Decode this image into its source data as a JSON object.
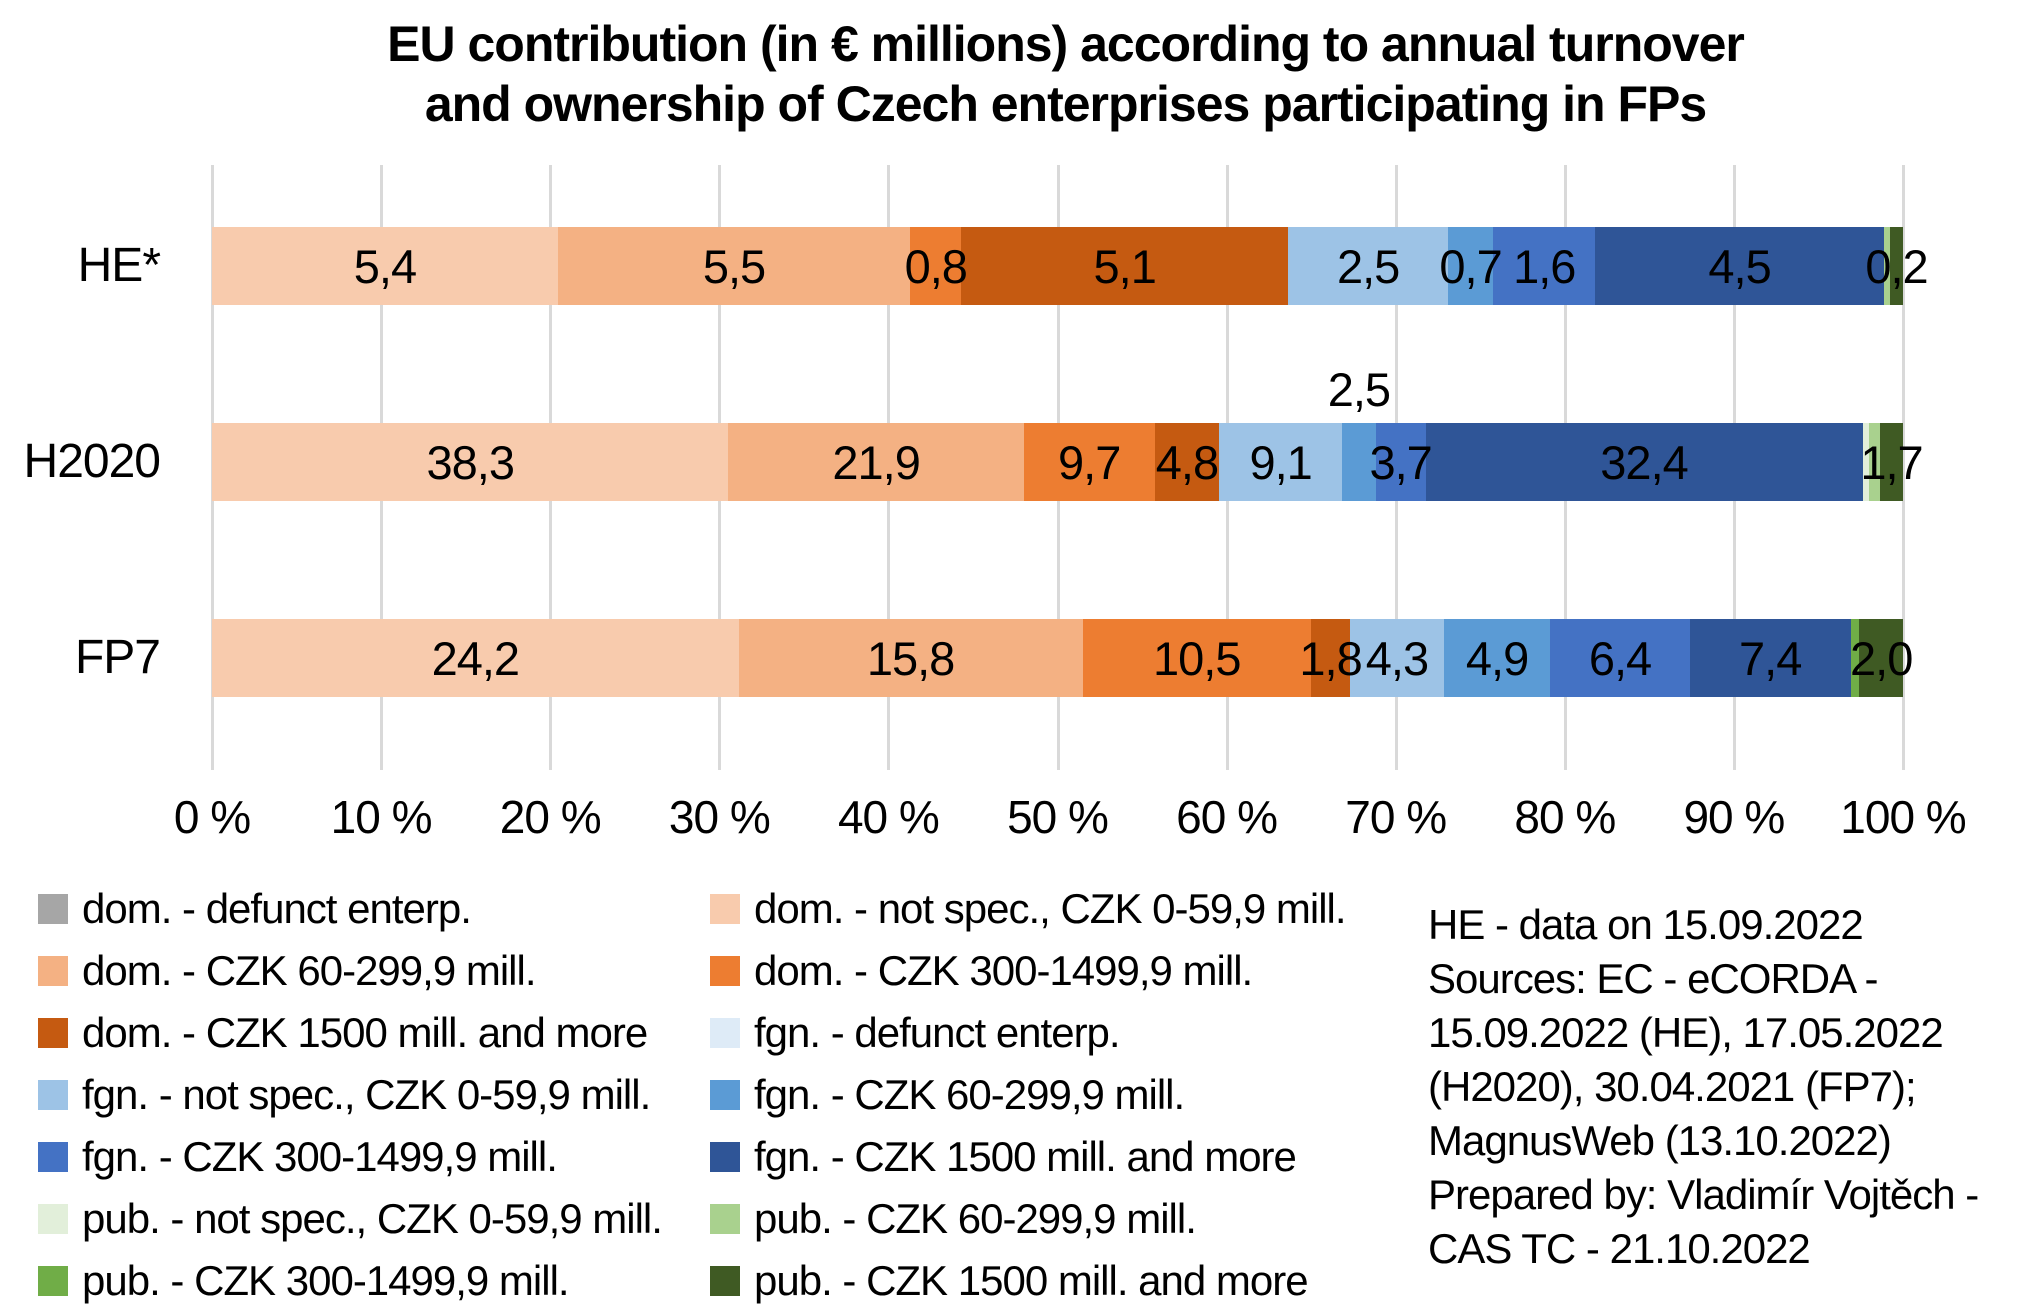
{
  "title": {
    "text": "EU contribution (in € millions) according to annual turnover\nand ownership of Czech enterprises participating in FPs"
  },
  "notes": {
    "text": "HE - data on 15.09.2022\nSources: EC - eCORDA -\n15.09.2022 (HE), 17.05.2022\n(H2020), 30.04.2021 (FP7);\nMagnusWeb (13.10.2022)\nPrepared by: Vladimír Vojtěch -\nCAS TC - 21.10.2022"
  },
  "colors": {
    "background": "#FFFFFF",
    "gridline": "#D9D9D9",
    "text": "#000000"
  },
  "chart_data": {
    "type": "bar",
    "stacked": true,
    "orientation": "horizontal",
    "value_unit": "€ millions",
    "title": "EU contribution (in € millions) according to annual turnover and ownership of Czech enterprises participating in FPs",
    "categories": [
      "HE*",
      "H2020",
      "FP7"
    ],
    "axis": {
      "min": 0,
      "max": 100,
      "tick_labels": [
        "0 %",
        "10 %",
        "20 %",
        "30 %",
        "40 %",
        "50 %",
        "60 %",
        "70 %",
        "80 %",
        "90 %",
        "100 %"
      ],
      "grid": true
    },
    "series": [
      {
        "name": "dom. - defunct enterp.",
        "color": "#A6A6A6",
        "values": [
          0,
          0,
          0
        ],
        "labels": [
          "",
          "",
          ""
        ]
      },
      {
        "name": "dom. - not spec., CZK 0-59,9 mill.",
        "color": "#F8CBAD",
        "values": [
          5.4,
          38.3,
          24.2
        ],
        "labels": [
          "5,4",
          "38,3",
          "24,2"
        ]
      },
      {
        "name": "dom. - CZK 60-299,9 mill.",
        "color": "#F4B183",
        "values": [
          5.5,
          21.9,
          15.8
        ],
        "labels": [
          "5,5",
          "21,9",
          "15,8"
        ]
      },
      {
        "name": "dom. - CZK 300-1499,9 mill.",
        "color": "#ED7D31",
        "values": [
          0.8,
          9.7,
          10.5
        ],
        "labels": [
          "0,8",
          "9,7",
          "10,5"
        ]
      },
      {
        "name": "dom. - CZK 1500 mill. and more",
        "color": "#C55A11",
        "values": [
          5.1,
          4.8,
          1.8
        ],
        "labels": [
          "5,1",
          "4,8",
          "1,8"
        ]
      },
      {
        "name": "fgn. - defunct enterp.",
        "color": "#DEEBF7",
        "values": [
          0,
          0,
          0
        ],
        "labels": [
          "",
          "",
          ""
        ]
      },
      {
        "name": "fgn. - not spec., CZK 0-59,9 mill.",
        "color": "#9DC3E6",
        "values": [
          2.5,
          9.1,
          4.3
        ],
        "labels": [
          "2,5",
          "9,1",
          "4,3"
        ]
      },
      {
        "name": "fgn. - CZK 60-299,9 mill.",
        "color": "#5B9BD5",
        "values": [
          0.7,
          2.5,
          4.9
        ],
        "labels": [
          "0,7",
          "2,5",
          "4,9"
        ]
      },
      {
        "name": "fgn. - CZK 300-1499,9 mill.",
        "color": "#4472C4",
        "values": [
          1.6,
          3.7,
          6.4
        ],
        "labels": [
          "1,6",
          "3,7",
          "6,4"
        ]
      },
      {
        "name": "fgn. - CZK 1500 mill. and more",
        "color": "#2F5597",
        "values": [
          4.5,
          32.4,
          7.4
        ],
        "labels": [
          "4,5",
          "32,4",
          "7,4"
        ]
      },
      {
        "name": "pub. - not spec., CZK 0-59,9 mill.",
        "color": "#E2EFDA",
        "values": [
          0,
          0.5,
          0
        ],
        "labels": [
          "",
          "",
          ""
        ]
      },
      {
        "name": "pub. - CZK 60-299,9 mill.",
        "color": "#A9D18E",
        "values": [
          0.1,
          0.8,
          0
        ],
        "labels": [
          "",
          "",
          ""
        ]
      },
      {
        "name": "pub. - CZK 300-1499,9 mill.",
        "color": "#70AD47",
        "values": [
          0,
          0,
          0.4
        ],
        "labels": [
          "",
          "",
          ""
        ]
      },
      {
        "name": "pub. - CZK 1500 mill. and more",
        "color": "#3F5A23",
        "values": [
          0.2,
          1.7,
          2.0
        ],
        "labels": [
          "0,2",
          "1,7",
          "2,0"
        ]
      }
    ],
    "label_above": [
      {
        "series": 7,
        "category": 1
      }
    ],
    "legend": {
      "position": "bottom-left",
      "columns": [
        [
          0,
          2,
          4,
          6,
          8,
          10,
          12
        ],
        [
          1,
          3,
          5,
          7,
          9,
          11,
          13
        ]
      ]
    }
  }
}
